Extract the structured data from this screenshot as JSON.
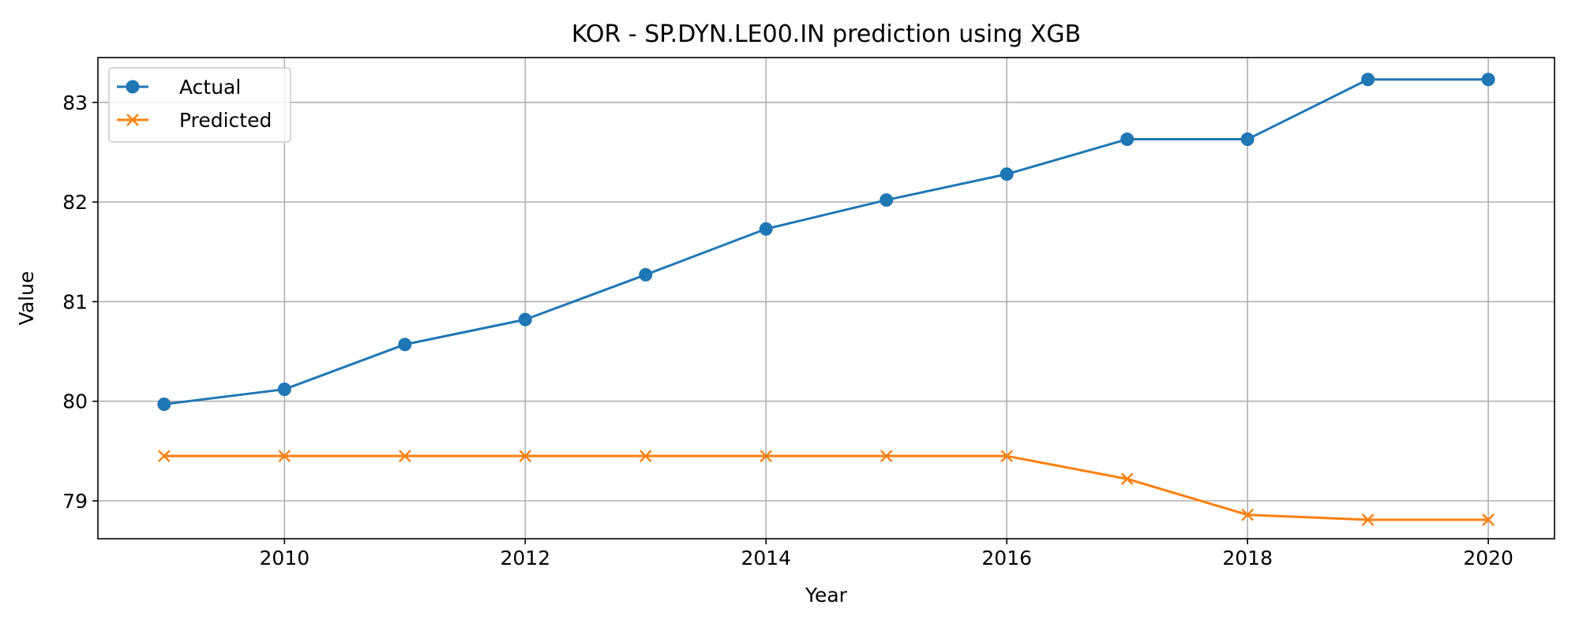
{
  "chart_data": {
    "type": "line",
    "title": "KOR - SP.DYN.LE00.IN prediction using XGB",
    "xlabel": "Year",
    "ylabel": "Value",
    "x": [
      2009,
      2010,
      2011,
      2012,
      2013,
      2014,
      2015,
      2016,
      2017,
      2018,
      2019,
      2020
    ],
    "xlim": [
      2008.45,
      2020.55
    ],
    "ylim": [
      78.62,
      83.45
    ],
    "xticks": [
      2010,
      2012,
      2014,
      2016,
      2018,
      2020
    ],
    "yticks": [
      79,
      80,
      81,
      82,
      83
    ],
    "grid": true,
    "legend_position": "upper-left",
    "series": [
      {
        "name": "Actual",
        "color": "#1f77b4",
        "marker": "circle",
        "values": [
          79.97,
          80.12,
          80.57,
          80.82,
          81.27,
          81.73,
          82.02,
          82.28,
          82.63,
          82.63,
          83.23,
          83.23
        ]
      },
      {
        "name": "Predicted",
        "color": "#ff7f0e",
        "marker": "x",
        "values": [
          79.45,
          79.45,
          79.45,
          79.45,
          79.45,
          79.45,
          79.45,
          79.45,
          79.22,
          78.86,
          78.81,
          78.81
        ]
      }
    ]
  }
}
